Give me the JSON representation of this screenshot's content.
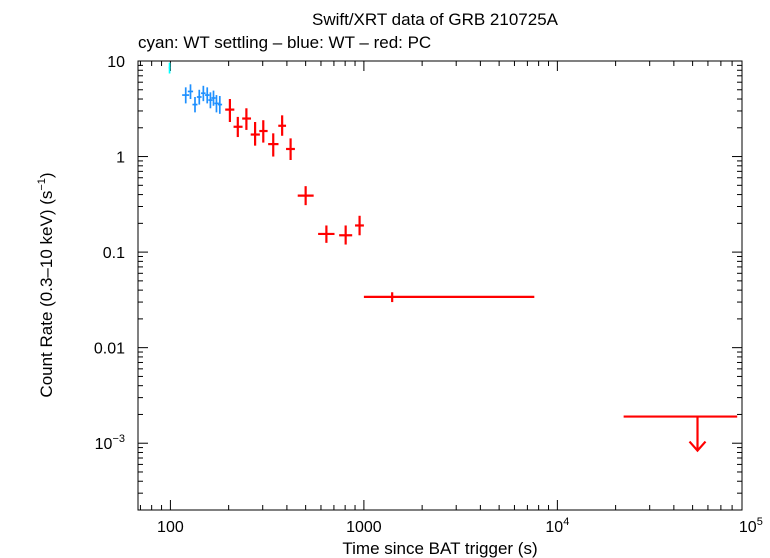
{
  "chart_data": {
    "type": "scatter",
    "title": "Swift/XRT data of GRB 210725A",
    "subtitle": "cyan: WT settling – blue: WT – red: PC",
    "xlabel": "Time since BAT trigger (s)",
    "ylabel": {
      "pre": "Count Rate (0.3–10 keV) (s",
      "sup": "−1",
      "post": ")"
    },
    "xscale": "log",
    "yscale": "log",
    "xlim": [
      68,
      90000
    ],
    "ylim": [
      0.0002,
      10
    ],
    "grid": false,
    "x_ticks": [
      {
        "value": 100,
        "label": "100"
      },
      {
        "value": 1000,
        "label": "1000"
      },
      {
        "value": 10000,
        "base": "10",
        "exp": "4"
      },
      {
        "value": 100000,
        "base": "10",
        "exp": "5"
      }
    ],
    "y_ticks": [
      {
        "value": 10,
        "label": "10"
      },
      {
        "value": 1,
        "label": "1"
      },
      {
        "value": 0.1,
        "label": "0.1"
      },
      {
        "value": 0.01,
        "label": "0.01"
      },
      {
        "value": 0.001,
        "base": "10",
        "exp": "−3"
      }
    ],
    "colors": {
      "wt_settling": "#00ffff",
      "wt": "#1e90ff",
      "pc": "#ff0000"
    },
    "series": [
      {
        "key": "wt_settling",
        "points": [
          {
            "x": 99,
            "xlo": 98,
            "xhi": 100,
            "y": 8.5,
            "ylo": 7.4,
            "yhi": 9.6
          }
        ]
      },
      {
        "key": "wt",
        "points": [
          {
            "x": 120,
            "xlo": 115,
            "xhi": 125,
            "y": 4.4,
            "ylo": 3.6,
            "yhi": 5.3
          },
          {
            "x": 127,
            "xlo": 123,
            "xhi": 131,
            "y": 4.8,
            "ylo": 4.0,
            "yhi": 5.7
          },
          {
            "x": 134,
            "xlo": 130,
            "xhi": 138,
            "y": 3.5,
            "ylo": 2.9,
            "yhi": 4.2
          },
          {
            "x": 141,
            "xlo": 137,
            "xhi": 145,
            "y": 4.2,
            "ylo": 3.5,
            "yhi": 5.0
          },
          {
            "x": 148,
            "xlo": 144,
            "xhi": 152,
            "y": 4.6,
            "ylo": 3.8,
            "yhi": 5.5
          },
          {
            "x": 155,
            "xlo": 151,
            "xhi": 159,
            "y": 4.4,
            "ylo": 3.6,
            "yhi": 5.3
          },
          {
            "x": 161,
            "xlo": 157,
            "xhi": 165,
            "y": 3.9,
            "ylo": 3.2,
            "yhi": 4.7
          },
          {
            "x": 167,
            "xlo": 163,
            "xhi": 171,
            "y": 4.1,
            "ylo": 3.4,
            "yhi": 4.9
          },
          {
            "x": 173,
            "xlo": 169,
            "xhi": 178,
            "y": 3.6,
            "ylo": 2.9,
            "yhi": 4.4
          },
          {
            "x": 180,
            "xlo": 176,
            "xhi": 185,
            "y": 3.5,
            "ylo": 2.8,
            "yhi": 4.3
          }
        ]
      },
      {
        "key": "pc",
        "points": [
          {
            "x": 203,
            "xlo": 192,
            "xhi": 214,
            "y": 3.1,
            "ylo": 2.3,
            "yhi": 4.0
          },
          {
            "x": 223,
            "xlo": 212,
            "xhi": 236,
            "y": 2.05,
            "ylo": 1.6,
            "yhi": 2.6
          },
          {
            "x": 247,
            "xlo": 235,
            "xhi": 261,
            "y": 2.5,
            "ylo": 1.9,
            "yhi": 3.2
          },
          {
            "x": 274,
            "xlo": 260,
            "xhi": 290,
            "y": 1.7,
            "ylo": 1.3,
            "yhi": 2.3
          },
          {
            "x": 302,
            "xlo": 288,
            "xhi": 318,
            "y": 1.85,
            "ylo": 1.4,
            "yhi": 2.4
          },
          {
            "x": 340,
            "xlo": 320,
            "xhi": 362,
            "y": 1.35,
            "ylo": 1.0,
            "yhi": 1.75
          },
          {
            "x": 378,
            "xlo": 361,
            "xhi": 396,
            "y": 2.1,
            "ylo": 1.65,
            "yhi": 2.7
          },
          {
            "x": 418,
            "xlo": 396,
            "xhi": 440,
            "y": 1.2,
            "ylo": 0.92,
            "yhi": 1.55
          },
          {
            "x": 500,
            "xlo": 455,
            "xhi": 550,
            "y": 0.39,
            "ylo": 0.31,
            "yhi": 0.49
          },
          {
            "x": 640,
            "xlo": 580,
            "xhi": 705,
            "y": 0.155,
            "ylo": 0.125,
            "yhi": 0.19
          },
          {
            "x": 805,
            "xlo": 745,
            "xhi": 870,
            "y": 0.15,
            "ylo": 0.12,
            "yhi": 0.19
          },
          {
            "x": 950,
            "xlo": 900,
            "xhi": 1000,
            "y": 0.19,
            "ylo": 0.15,
            "yhi": 0.24
          },
          {
            "x": 1400,
            "xlo": 1000,
            "xhi": 7600,
            "y": 0.034,
            "ylo": 0.03,
            "yhi": 0.038
          }
        ]
      },
      {
        "key": "pc",
        "upper_limit": true,
        "points": [
          {
            "x": 53000,
            "xlo": 22000,
            "xhi": 85000,
            "y": 0.0019
          }
        ]
      }
    ]
  }
}
